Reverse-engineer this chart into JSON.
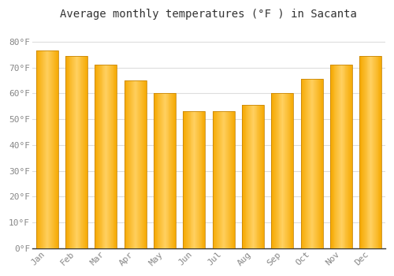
{
  "months": [
    "Jan",
    "Feb",
    "Mar",
    "Apr",
    "May",
    "Jun",
    "Jul",
    "Aug",
    "Sep",
    "Oct",
    "Nov",
    "Dec"
  ],
  "values": [
    76.5,
    74.5,
    71,
    65,
    60,
    53,
    53,
    55.5,
    60,
    65.5,
    71,
    74.5
  ],
  "bar_color_left": "#F5A800",
  "bar_color_right": "#FFD060",
  "bar_edge_color": "#C8870A",
  "title": "Average monthly temperatures (°F ) in Sacanta",
  "ylim": [
    0,
    86
  ],
  "yticks": [
    0,
    10,
    20,
    30,
    40,
    50,
    60,
    70,
    80
  ],
  "ytick_labels": [
    "0°F",
    "10°F",
    "20°F",
    "30°F",
    "40°F",
    "50°F",
    "60°F",
    "70°F",
    "80°F"
  ],
  "background_color": "#ffffff",
  "plot_bg_color": "#ffffff",
  "grid_color": "#dddddd",
  "title_fontsize": 10,
  "tick_fontsize": 8,
  "bar_width": 0.75
}
